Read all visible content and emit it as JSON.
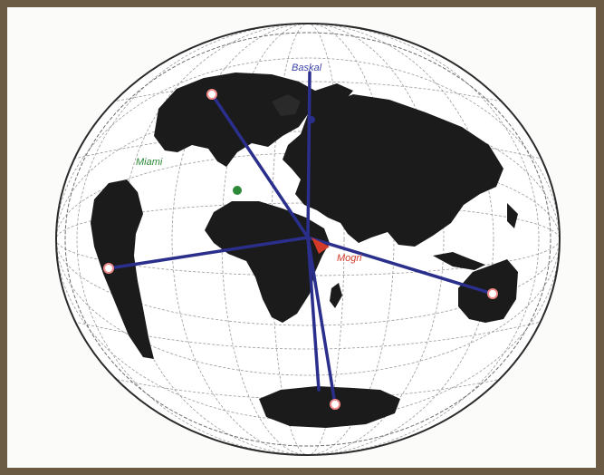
{
  "map": {
    "labels": {
      "top": "Baskal",
      "left": "Miami",
      "center": "Mogri"
    },
    "colors": {
      "frame": "#6b5a44",
      "paper": "#fbfbf9",
      "land": "#1b1b1b",
      "line": "#2b2f8c",
      "top_label": "#3c44a8",
      "left_label": "#2e8a3a",
      "center_label": "#d23a2a",
      "center_marker": "#d23a2a",
      "marker": "#ffffff",
      "marker_ring": "#f08a8a"
    }
  }
}
